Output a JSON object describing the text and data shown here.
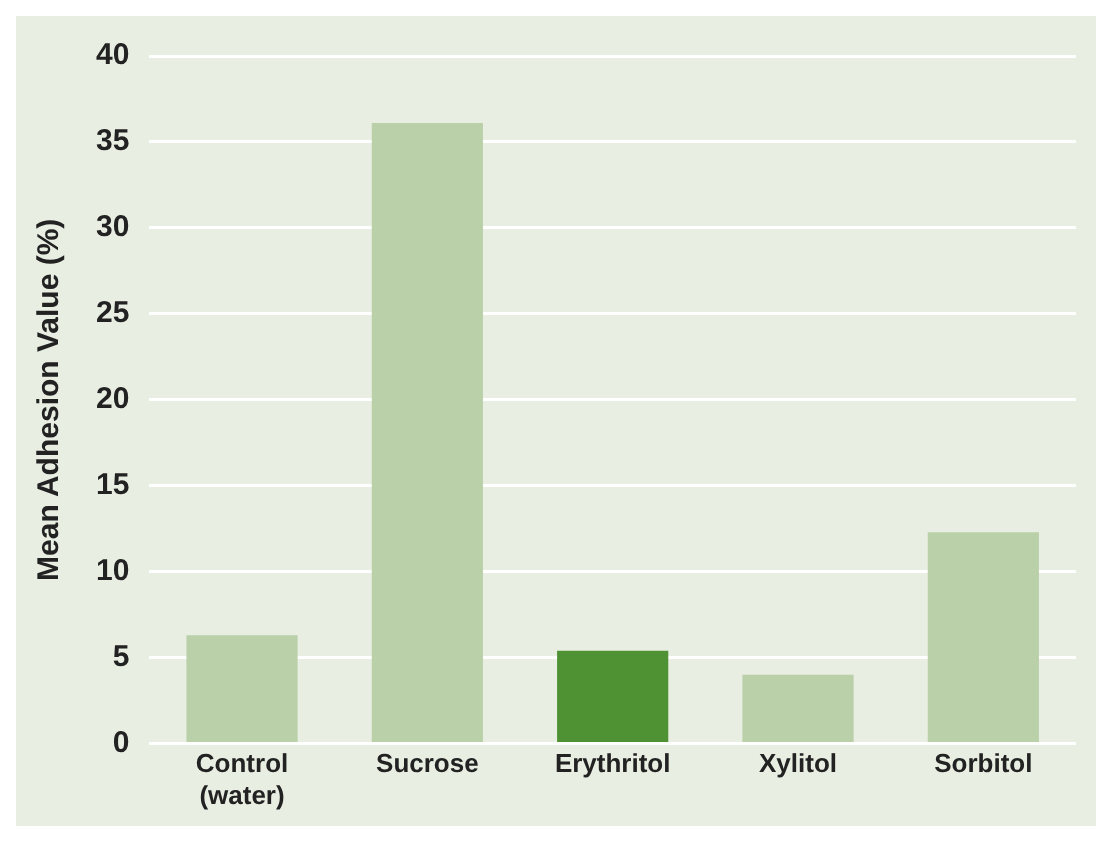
{
  "chart_data": {
    "type": "bar",
    "ylabel": "Mean Adhesion Value (%)",
    "categories": [
      "Control (water)",
      "Sucrose",
      "Erythritol",
      "Xylitol",
      "Sorbitol"
    ],
    "values": [
      6.3,
      36.1,
      5.4,
      4.0,
      12.3
    ],
    "colors": [
      "#b9d0a8",
      "#b9d0a8",
      "#4e9233",
      "#b9d0a8",
      "#b9d0a8"
    ],
    "ylim": [
      0,
      40
    ],
    "yticks": [
      0,
      5,
      10,
      15,
      20,
      25,
      30,
      35,
      40
    ],
    "grid": "y",
    "legend": false
  }
}
